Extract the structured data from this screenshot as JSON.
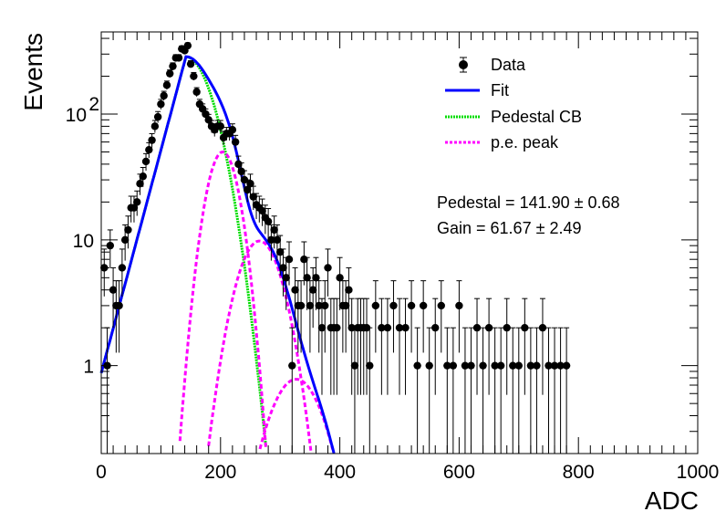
{
  "chart_data": {
    "type": "scatter",
    "xlabel": "ADC",
    "ylabel": "Events",
    "xlim": [
      0,
      1000
    ],
    "ylim": [
      0.2,
      450
    ],
    "y_scale": "log",
    "grid": false,
    "legend_position": "top-right",
    "x_ticks": [
      "0",
      "200",
      "400",
      "600",
      "800",
      "1000"
    ],
    "y_ticks": [
      {
        "value": 1,
        "label": "1"
      },
      {
        "value": 10,
        "label": "10"
      },
      {
        "value": 100,
        "label": "10",
        "exponent": "2"
      }
    ],
    "legend": {
      "data": "Data",
      "fit": "Fit",
      "pedestal": "Pedestal CB",
      "pe": "p.e. peak"
    },
    "annotations": {
      "pedestal": "Pedestal = 141.90 ± 0.68",
      "gain": "Gain = 61.67 ± 2.49"
    },
    "colors": {
      "data": "#000000",
      "fit": "#0000ff",
      "pedestal": "#00dd00",
      "pe": "#ff00ff"
    },
    "data_points": {
      "x": [
        5,
        10,
        15,
        20,
        25,
        30,
        35,
        40,
        45,
        50,
        55,
        60,
        65,
        70,
        75,
        80,
        85,
        90,
        95,
        100,
        105,
        110,
        115,
        120,
        125,
        130,
        135,
        140,
        145,
        150,
        155,
        160,
        165,
        170,
        175,
        180,
        185,
        190,
        195,
        200,
        205,
        210,
        215,
        220,
        225,
        230,
        235,
        240,
        245,
        250,
        255,
        260,
        265,
        270,
        275,
        280,
        285,
        290,
        295,
        300,
        305,
        310,
        315,
        320,
        325,
        330,
        335,
        340,
        345,
        350,
        355,
        360,
        365,
        370,
        375,
        380,
        385,
        390,
        395,
        400,
        405,
        410,
        415,
        420,
        425,
        430,
        435,
        440,
        445,
        450,
        460,
        470,
        480,
        490,
        500,
        510,
        520,
        530,
        540,
        550,
        560,
        570,
        580,
        590,
        600,
        610,
        620,
        630,
        640,
        650,
        660,
        670,
        680,
        690,
        700,
        710,
        720,
        730,
        740,
        750,
        760,
        770,
        780
      ],
      "y": [
        6,
        1,
        9,
        4,
        3,
        3,
        6,
        10,
        12,
        18,
        18,
        20,
        28,
        32,
        42,
        52,
        62,
        80,
        95,
        120,
        140,
        170,
        210,
        240,
        280,
        280,
        330,
        320,
        350,
        250,
        200,
        150,
        120,
        110,
        100,
        90,
        80,
        75,
        80,
        80,
        65,
        70,
        70,
        75,
        60,
        40,
        35,
        30,
        25,
        28,
        22,
        19,
        18,
        17,
        15,
        14,
        10,
        12,
        10,
        8,
        6,
        5,
        7,
        1,
        4,
        3,
        3,
        7,
        5,
        3,
        4,
        5,
        3,
        2,
        3,
        6,
        2,
        2,
        2,
        5,
        3,
        3,
        4,
        2,
        1,
        2,
        2,
        2,
        2,
        1,
        3,
        2,
        2,
        3,
        2,
        2,
        3,
        1,
        3,
        1,
        2,
        3,
        1,
        1,
        3,
        1,
        1,
        2,
        1,
        2,
        1,
        1,
        2,
        1,
        1,
        2,
        1,
        1,
        2,
        1,
        1,
        1,
        1
      ]
    },
    "fit_params": {
      "pedestal_mu": 141.9,
      "pedestal_sigma": 35.5,
      "cb_alpha": 0.3,
      "cb_n": 1.7,
      "pedestal_amp": 285,
      "gain": 61.67,
      "pe_sigma": 22,
      "pe_amps": [
        50,
        9.8,
        0.78
      ]
    }
  }
}
